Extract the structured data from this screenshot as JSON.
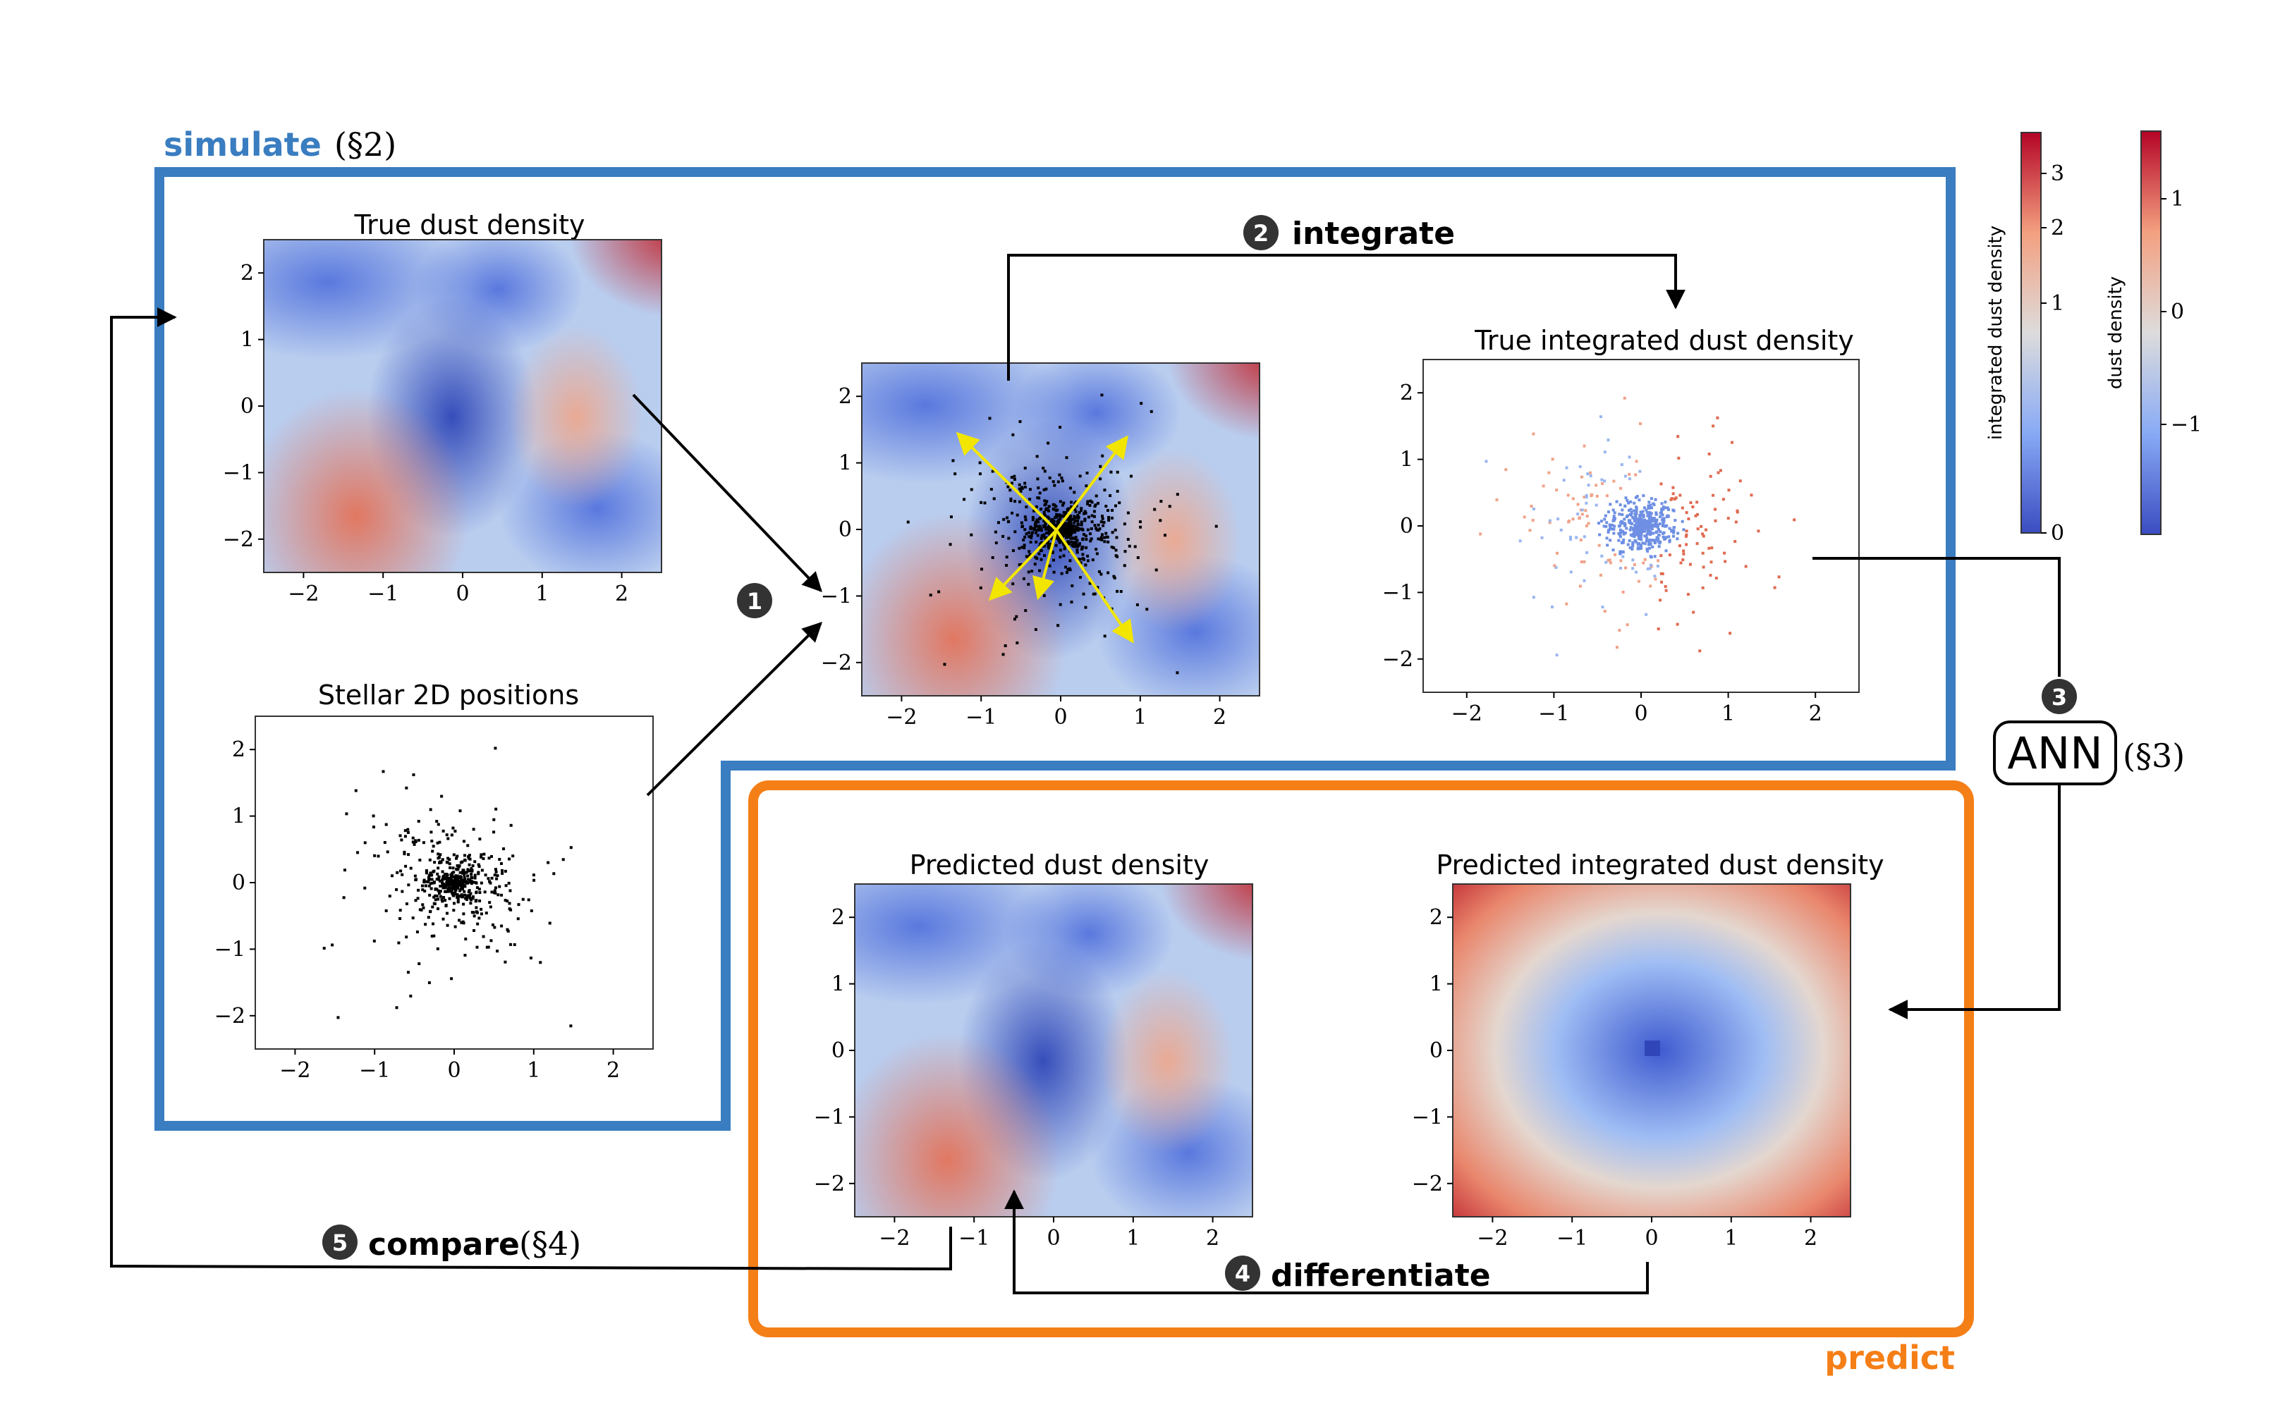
{
  "sections": {
    "simulate": {
      "label": "simulate",
      "ref": "(§2)",
      "color": "#3a7dc0"
    },
    "predict": {
      "label": "predict",
      "color": "#f57f17"
    }
  },
  "steps": [
    {
      "num": "1",
      "label": ""
    },
    {
      "num": "2",
      "label": "integrate"
    },
    {
      "num": "3",
      "label": "ANN",
      "ref": "(§3)"
    },
    {
      "num": "4",
      "label": "differentiate"
    },
    {
      "num": "5",
      "label": "compare",
      "ref": "(§4)"
    }
  ],
  "panels": {
    "true_density": {
      "title": "True dust density"
    },
    "stellar": {
      "title": "Stellar 2D positions"
    },
    "combined": {
      "title": ""
    },
    "true_integrated": {
      "title": "True integrated dust density"
    },
    "pred_density": {
      "title": "Predicted dust density"
    },
    "pred_integrated": {
      "title": "Predicted integrated dust density"
    }
  },
  "axes": {
    "x_ticks": [
      "−2",
      "−1",
      "0",
      "1",
      "2"
    ],
    "y_ticks": [
      "2",
      "1",
      "0",
      "−1",
      "−2"
    ],
    "xlim": [
      -2.5,
      2.5
    ],
    "ylim": [
      -2.5,
      2.5
    ]
  },
  "colorbars": {
    "integrated": {
      "label": "integrated dust density",
      "ticks": [
        "3",
        "2",
        "1",
        "0"
      ]
    },
    "density": {
      "label": "dust density",
      "ticks": [
        "1",
        "0",
        "−1"
      ]
    }
  },
  "colors": {
    "arrow": "#000000",
    "ray": "#f2e600"
  }
}
